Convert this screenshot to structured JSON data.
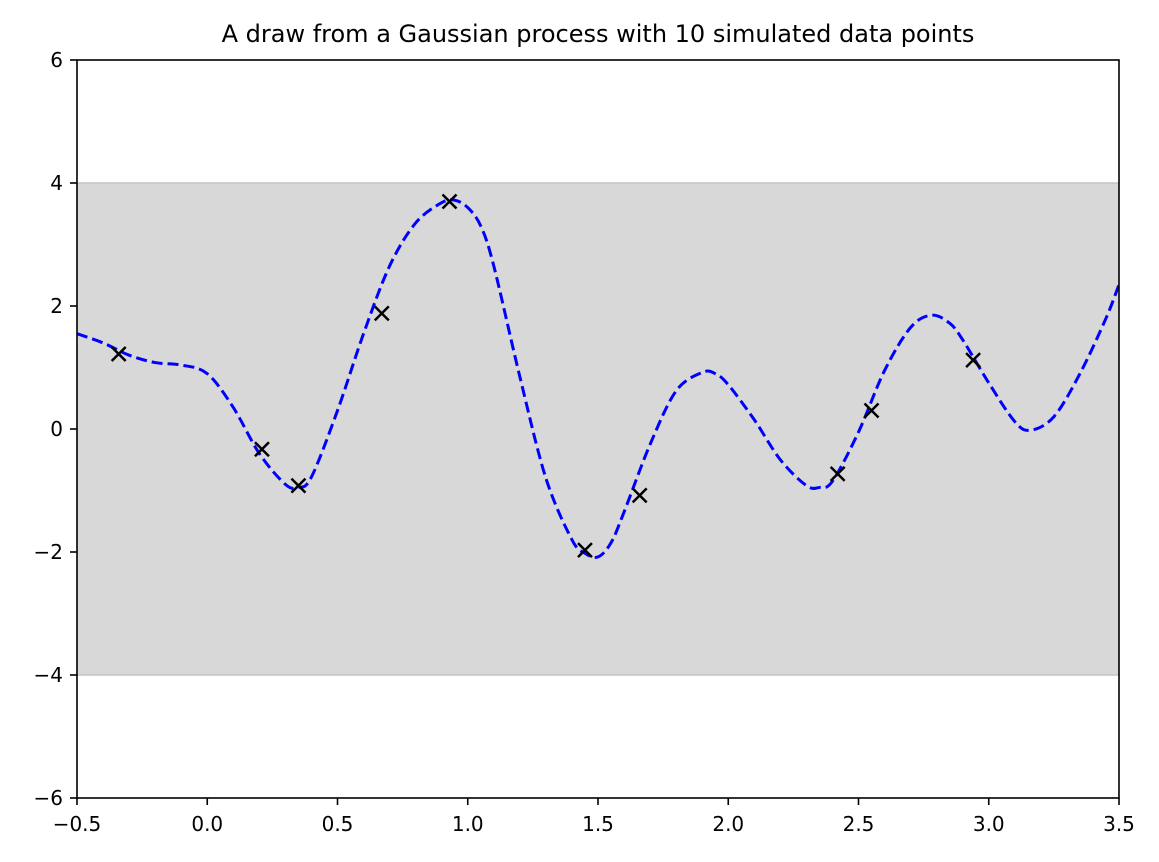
{
  "chart_data": {
    "type": "line",
    "title": "A draw from a Gaussian process with 10 simulated data points",
    "xlabel": "",
    "ylabel": "",
    "xlim": [
      -0.5,
      3.5
    ],
    "ylim": [
      -6,
      6
    ],
    "xticks": [
      -0.5,
      0.0,
      0.5,
      1.0,
      1.5,
      2.0,
      2.5,
      3.0,
      3.5
    ],
    "xtick_labels": [
      "−0.5",
      "0.0",
      "0.5",
      "1.0",
      "1.5",
      "2.0",
      "2.5",
      "3.0",
      "3.5"
    ],
    "yticks": [
      -6,
      -4,
      -2,
      0,
      2,
      4,
      6
    ],
    "ytick_labels": [
      "−6",
      "−4",
      "−2",
      "0",
      "2",
      "4",
      "6"
    ],
    "grid": false,
    "band": {
      "y_low": -4,
      "y_high": 4,
      "color": "#d8d8d8",
      "edge_color": "#c4c4c4"
    },
    "series": [
      {
        "style": "dashed",
        "color": "#0000ff",
        "x": [
          -0.5,
          -0.4,
          -0.3,
          -0.2,
          -0.1,
          0.0,
          0.1,
          0.2,
          0.3,
          0.35,
          0.4,
          0.5,
          0.6,
          0.7,
          0.8,
          0.9,
          0.95,
          1.0,
          1.05,
          1.1,
          1.2,
          1.3,
          1.4,
          1.45,
          1.5,
          1.55,
          1.6,
          1.7,
          1.8,
          1.9,
          1.95,
          2.0,
          2.1,
          2.2,
          2.3,
          2.35,
          2.4,
          2.5,
          2.6,
          2.7,
          2.78,
          2.85,
          2.9,
          3.0,
          3.1,
          3.16,
          3.25,
          3.35,
          3.45,
          3.5
        ],
        "y": [
          1.55,
          1.4,
          1.2,
          1.08,
          1.04,
          0.9,
          0.35,
          -0.4,
          -0.9,
          -0.95,
          -0.78,
          0.3,
          1.55,
          2.65,
          3.35,
          3.68,
          3.72,
          3.6,
          3.3,
          2.65,
          0.85,
          -0.8,
          -1.8,
          -2.02,
          -2.08,
          -1.85,
          -1.35,
          -0.25,
          0.62,
          0.92,
          0.9,
          0.72,
          0.15,
          -0.5,
          -0.92,
          -0.95,
          -0.85,
          -0.05,
          0.95,
          1.65,
          1.85,
          1.72,
          1.45,
          0.75,
          0.12,
          -0.02,
          0.2,
          0.9,
          1.8,
          2.35
        ]
      }
    ],
    "points": {
      "marker": "x",
      "color": "#000000",
      "x": [
        -0.34,
        0.21,
        0.35,
        0.67,
        0.93,
        1.45,
        1.66,
        2.42,
        2.55,
        2.94
      ],
      "y": [
        1.22,
        -0.33,
        -0.92,
        1.88,
        3.7,
        -1.97,
        -1.08,
        -0.73,
        0.3,
        1.12
      ]
    }
  }
}
